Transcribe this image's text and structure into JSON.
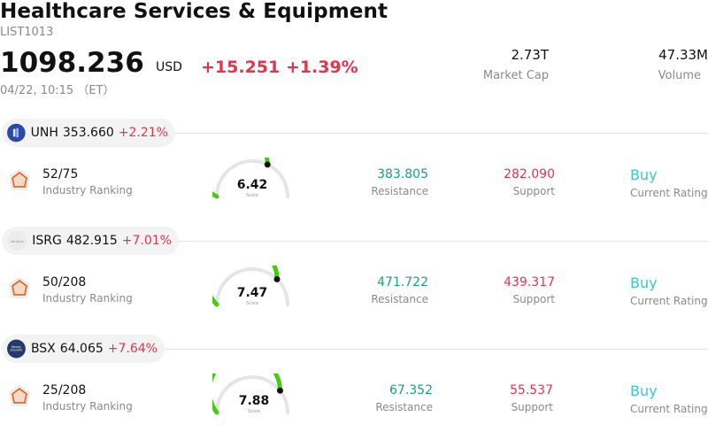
{
  "header": {
    "title": "Healthcare Services & Equipment",
    "code": "LIST1013",
    "price": "1098.236",
    "currency": "USD",
    "change": "+15.251",
    "change_pct": "+1.39%",
    "timestamp": "04/22, 10:15 （ET）",
    "market_cap_value": "2.73T",
    "market_cap_label": "Market Cap",
    "volume_value": "47.33M",
    "volume_label": "Volume"
  },
  "colors": {
    "up": "#e8334a",
    "resistance": "#16a085",
    "rating": "#3cc7c7",
    "gauge": "#44cc11"
  },
  "stocks": [
    {
      "ticker": "UNH",
      "price": "353.660",
      "change_pct": "+2.21%",
      "logo_icon": "unh-logo-icon",
      "ranking": "52/75",
      "ranking_label": "Industry Ranking",
      "score": "6.42",
      "score_value": 6.42,
      "score_label": "Score",
      "resistance": "383.805",
      "resistance_label": "Resistance",
      "support": "282.090",
      "support_label": "Support",
      "rating": "Buy",
      "rating_label": "Current Rating"
    },
    {
      "ticker": "ISRG",
      "price": "482.915",
      "change_pct": "+7.01%",
      "logo_icon": "isrg-logo-icon",
      "ranking": "50/208",
      "ranking_label": "Industry Ranking",
      "score": "7.47",
      "score_value": 7.47,
      "score_label": "Score",
      "resistance": "471.722",
      "resistance_label": "Resistance",
      "support": "439.317",
      "support_label": "Support",
      "rating": "Buy",
      "rating_label": "Current Rating"
    },
    {
      "ticker": "BSX",
      "price": "64.065",
      "change_pct": "+7.64%",
      "logo_icon": "bsx-logo-icon",
      "ranking": "25/208",
      "ranking_label": "Industry Ranking",
      "score": "7.88",
      "score_value": 7.88,
      "score_label": "Score",
      "resistance": "67.352",
      "resistance_label": "Resistance",
      "support": "55.537",
      "support_label": "Support",
      "rating": "Buy",
      "rating_label": "Current Rating"
    }
  ]
}
